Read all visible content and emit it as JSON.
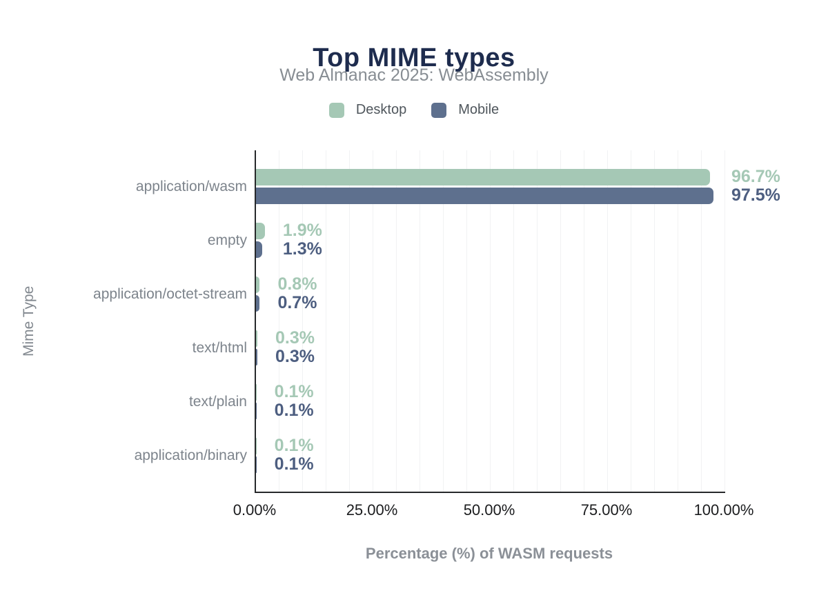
{
  "chart_data": {
    "type": "bar",
    "orientation": "horizontal",
    "title": "Top MIME types",
    "subtitle": "Web Almanac 2025: WebAssembly",
    "xlabel": "Percentage (%) of WASM requests",
    "ylabel": "Mime Type",
    "xlim": [
      0,
      100
    ],
    "xticks": [
      "0.00%",
      "25.00%",
      "50.00%",
      "75.00%",
      "100.00%"
    ],
    "grid": {
      "on": true,
      "direction": "vertical",
      "minor_step_pct": 5,
      "color": "#f1f2f3"
    },
    "legend_position": "top",
    "categories": [
      "application/wasm",
      "empty",
      "application/octet-stream",
      "text/html",
      "text/plain",
      "application/binary"
    ],
    "series": [
      {
        "name": "Desktop",
        "color": "#a5c8b5",
        "label_color": "#a5c8b5",
        "values": [
          96.7,
          1.9,
          0.8,
          0.3,
          0.1,
          0.1
        ],
        "labels": [
          "96.7%",
          "1.9%",
          "0.8%",
          "0.3%",
          "0.1%",
          "0.1%"
        ]
      },
      {
        "name": "Mobile",
        "color": "#5e708e",
        "label_color": "#4d5e80",
        "values": [
          97.5,
          1.3,
          0.7,
          0.3,
          0.1,
          0.1
        ],
        "labels": [
          "97.5%",
          "1.3%",
          "0.7%",
          "0.3%",
          "0.1%",
          "0.1%"
        ]
      }
    ]
  },
  "colors": {
    "title": "#1e2c4e",
    "subtitle": "#878d93",
    "legend_text": "#4f565c",
    "category_label": "#7d848c",
    "tick_label": "#1b1c1e",
    "axis_title": "#8b9097",
    "y_axis_title": "#82888f",
    "axis_line": "#26282a",
    "background": "#ffffff"
  }
}
